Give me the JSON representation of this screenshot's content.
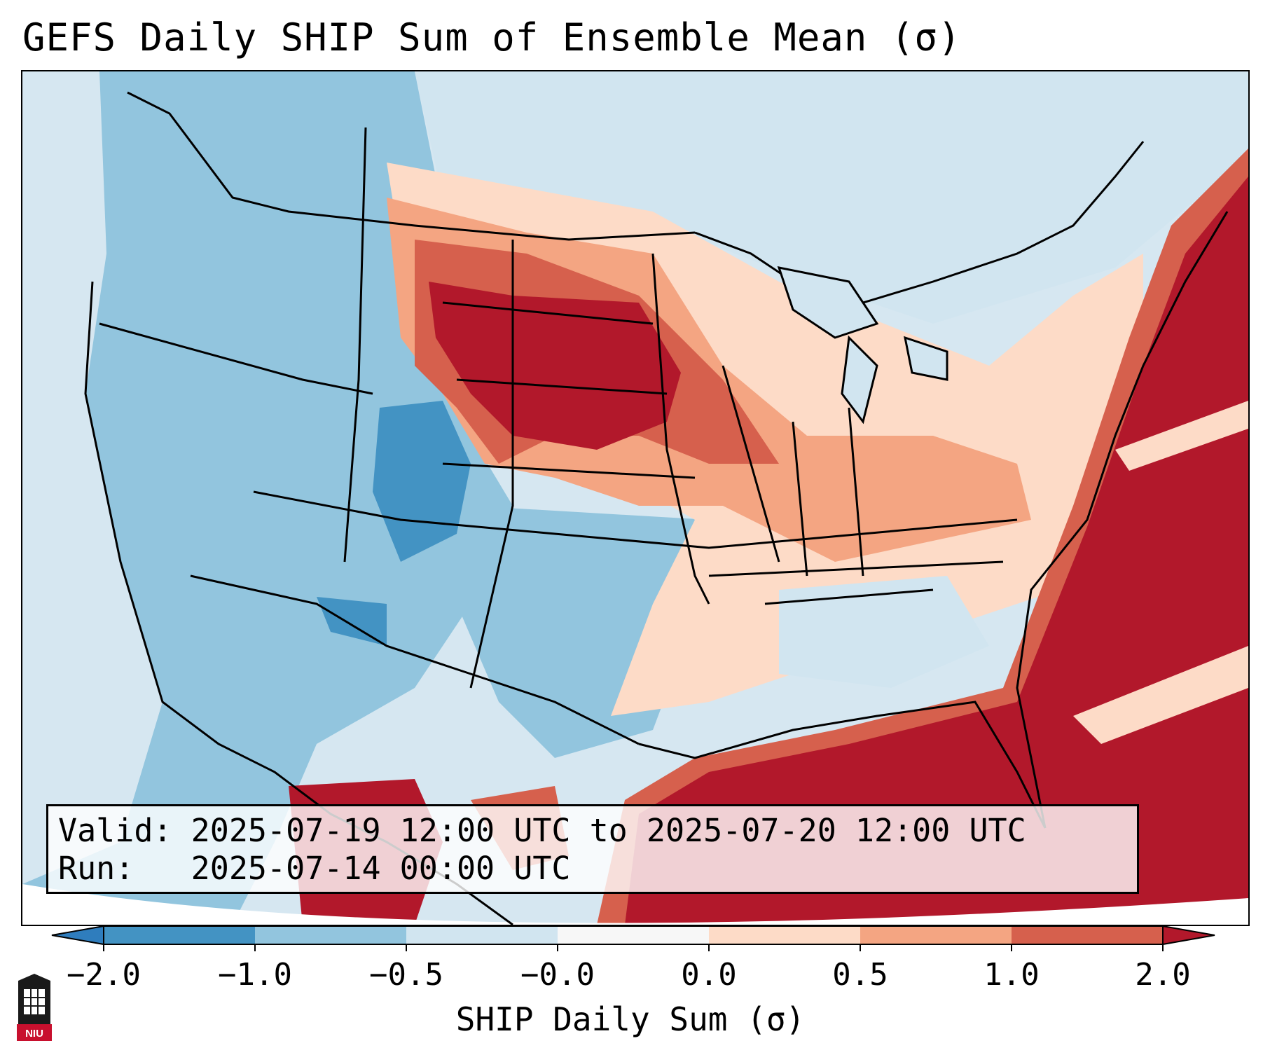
{
  "title": "GEFS Daily SHIP Sum of Ensemble Mean (σ)",
  "info": {
    "valid_prefix": "Valid:",
    "valid_value": "2025-07-19 12:00 UTC to 2025-07-20 12:00 UTC",
    "run_prefix": "Run:",
    "run_value": "2025-07-14 00:00 UTC"
  },
  "colorbar": {
    "label": "SHIP Daily Sum (σ)",
    "ticks": [
      "−2.0",
      "−1.0",
      "−0.5",
      "−0.0",
      "0.0",
      "0.5",
      "1.0",
      "2.0"
    ],
    "colors": [
      "#2f7dbd",
      "#4393c3",
      "#92c5de",
      "#d1e5f0",
      "#f7f7f7",
      "#fddbc7",
      "#f4a582",
      "#d6604d",
      "#b2182b"
    ]
  },
  "logo": {
    "text": "NIU"
  },
  "colors": {
    "ocean_background": "#d6e7f1",
    "positive_strong": "#b2182b",
    "negative_moderate": "#92c5de"
  }
}
